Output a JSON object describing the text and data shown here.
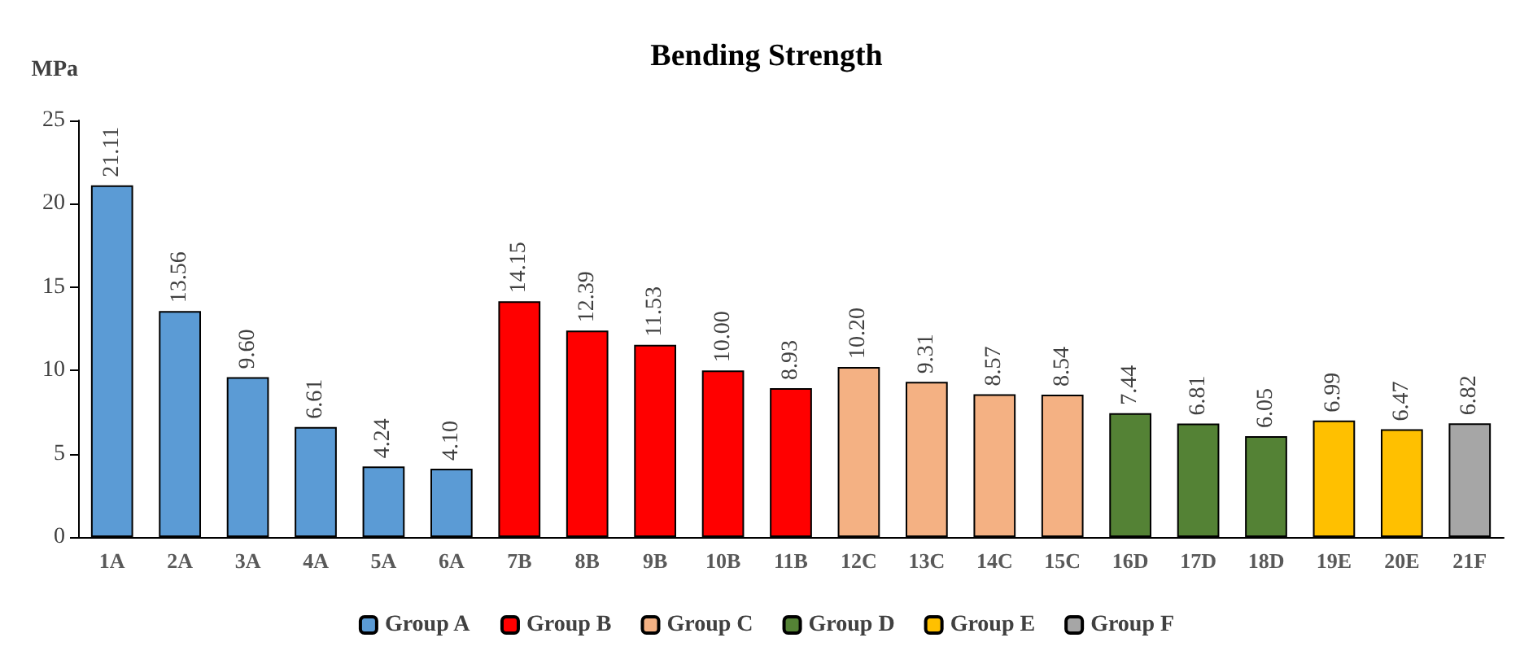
{
  "chart_data": {
    "type": "bar",
    "title": "Bending Strength",
    "ylabel": "MPa",
    "categories": [
      "1A",
      "2A",
      "3A",
      "4A",
      "5A",
      "6A",
      "7B",
      "8B",
      "9B",
      "10B",
      "11B",
      "12C",
      "13C",
      "14C",
      "15C",
      "16D",
      "17D",
      "18D",
      "19E",
      "20E",
      "21F"
    ],
    "series": [
      {
        "name": "Group A",
        "color": "#5b9bd5",
        "values": [
          21.11,
          13.56,
          9.6,
          6.61,
          4.24,
          4.1,
          null,
          null,
          null,
          null,
          null,
          null,
          null,
          null,
          null,
          null,
          null,
          null,
          null,
          null,
          null
        ],
        "value_labels": [
          "21.11",
          "13.56",
          "9.60",
          "6.61",
          "4.24",
          "4.10",
          null,
          null,
          null,
          null,
          null,
          null,
          null,
          null,
          null,
          null,
          null,
          null,
          null,
          null,
          null
        ]
      },
      {
        "name": "Group B",
        "color": "#ff0000",
        "values": [
          null,
          null,
          null,
          null,
          null,
          null,
          14.15,
          12.39,
          11.53,
          10.0,
          8.93,
          null,
          null,
          null,
          null,
          null,
          null,
          null,
          null,
          null,
          null
        ],
        "value_labels": [
          null,
          null,
          null,
          null,
          null,
          null,
          "14.15",
          "12.39",
          "11.53",
          "10.00",
          "8.93",
          null,
          null,
          null,
          null,
          null,
          null,
          null,
          null,
          null,
          null
        ]
      },
      {
        "name": "Group C",
        "color": "#f4b183",
        "values": [
          null,
          null,
          null,
          null,
          null,
          null,
          null,
          null,
          null,
          null,
          null,
          10.2,
          9.31,
          8.57,
          8.54,
          null,
          null,
          null,
          null,
          null,
          null
        ],
        "value_labels": [
          null,
          null,
          null,
          null,
          null,
          null,
          null,
          null,
          null,
          null,
          null,
          "10.20",
          "9.31",
          "8.57",
          "8.54",
          null,
          null,
          null,
          null,
          null,
          null
        ]
      },
      {
        "name": "Group D",
        "color": "#548235",
        "values": [
          null,
          null,
          null,
          null,
          null,
          null,
          null,
          null,
          null,
          null,
          null,
          null,
          null,
          null,
          null,
          7.44,
          6.81,
          6.05,
          null,
          null,
          null
        ],
        "value_labels": [
          null,
          null,
          null,
          null,
          null,
          null,
          null,
          null,
          null,
          null,
          null,
          null,
          null,
          null,
          null,
          "7.44",
          "6.81",
          "6.05",
          null,
          null,
          null
        ]
      },
      {
        "name": "Group E",
        "color": "#ffc000",
        "values": [
          null,
          null,
          null,
          null,
          null,
          null,
          null,
          null,
          null,
          null,
          null,
          null,
          null,
          null,
          null,
          null,
          null,
          null,
          6.99,
          6.47,
          null
        ],
        "value_labels": [
          null,
          null,
          null,
          null,
          null,
          null,
          null,
          null,
          null,
          null,
          null,
          null,
          null,
          null,
          null,
          null,
          null,
          null,
          "6.99",
          "6.47",
          null
        ]
      },
      {
        "name": "Group F",
        "color": "#a6a6a6",
        "values": [
          null,
          null,
          null,
          null,
          null,
          null,
          null,
          null,
          null,
          null,
          null,
          null,
          null,
          null,
          null,
          null,
          null,
          null,
          null,
          null,
          6.82
        ],
        "value_labels": [
          null,
          null,
          null,
          null,
          null,
          null,
          null,
          null,
          null,
          null,
          null,
          null,
          null,
          null,
          null,
          null,
          null,
          null,
          null,
          null,
          "6.82"
        ]
      }
    ],
    "ylim": [
      0,
      25
    ],
    "yticks": [
      0,
      5,
      10,
      15,
      20,
      25
    ],
    "legend": "bottom"
  }
}
